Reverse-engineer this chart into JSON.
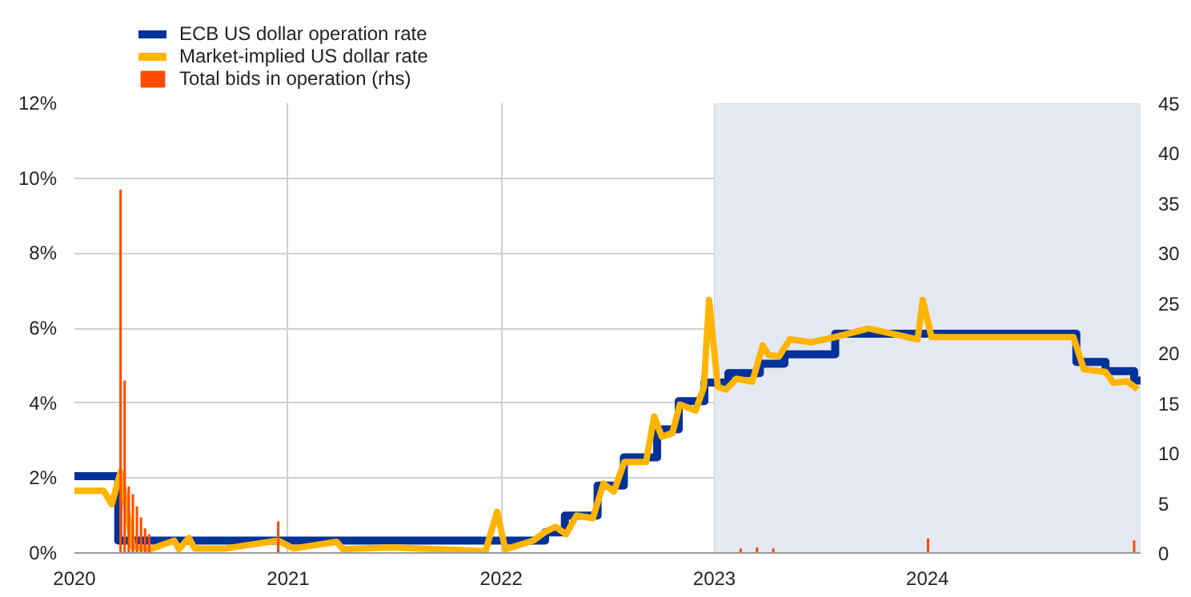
{
  "chart_data": {
    "type": "line",
    "xlim": [
      "2020-01-01",
      "2024-12-31"
    ],
    "xticks": [
      {
        "value": "2020-01-01",
        "label": "2020"
      },
      {
        "value": "2021-01-01",
        "label": "2021"
      },
      {
        "value": "2022-01-01",
        "label": "2022"
      },
      {
        "value": "2023-01-01",
        "label": "2023"
      },
      {
        "value": "2024-01-01",
        "label": "2024"
      }
    ],
    "ylim": [
      0,
      12
    ],
    "yticks": [
      {
        "value": 0,
        "label": "0%"
      },
      {
        "value": 2,
        "label": "2%"
      },
      {
        "value": 4,
        "label": "4%"
      },
      {
        "value": 6,
        "label": "6%"
      },
      {
        "value": 8,
        "label": "8%"
      },
      {
        "value": 10,
        "label": "10%"
      },
      {
        "value": 12,
        "label": "12%"
      }
    ],
    "y2lim": [
      0,
      45
    ],
    "y2ticks": [
      0,
      5,
      10,
      15,
      20,
      25,
      30,
      35,
      40,
      45
    ],
    "grid": true,
    "legend": "top left",
    "bands": [
      {
        "axis": "x",
        "from": "2023-01-01",
        "to": "2024-12-31",
        "color": "#e4e8f3"
      }
    ],
    "series": [
      {
        "name": "Total bids in operation (rhs)",
        "type": "bar",
        "axis": "y2",
        "color": "#ff4b00",
        "x": [
          "2020-03-20",
          "2020-03-27",
          "2020-04-03",
          "2020-04-10",
          "2020-04-17",
          "2020-04-24",
          "2020-05-01",
          "2020-05-08",
          "2020-12-15",
          "2023-02-15",
          "2023-03-15",
          "2023-04-12",
          "2024-01-02",
          "2024-12-20"
        ],
        "values": [
          36.3,
          17.2,
          6.6,
          5.8,
          4.6,
          3.5,
          2.4,
          1.8,
          3.1,
          0.4,
          0.5,
          0.4,
          1.4,
          1.2
        ]
      },
      {
        "name": "ECB US dollar operation rate",
        "type": "step",
        "color": "#003299",
        "x": [
          "2020-01-01",
          "2020-03-16",
          "2022-03-17",
          "2022-04-20",
          "2022-06-15",
          "2022-07-30",
          "2022-09-25",
          "2022-11-01",
          "2022-12-15",
          "2023-01-25",
          "2023-03-20",
          "2023-05-01",
          "2023-07-27",
          "2024-09-12",
          "2024-11-01",
          "2024-12-20",
          "2024-12-31"
        ],
        "values": [
          2.05,
          0.33,
          0.55,
          1.0,
          1.8,
          2.55,
          3.3,
          4.05,
          4.55,
          4.8,
          5.05,
          5.3,
          5.85,
          5.1,
          4.85,
          4.6,
          4.6
        ]
      },
      {
        "name": "Market-implied US dollar rate",
        "type": "line",
        "color": "#ffb400",
        "x": [
          "2020-01-01",
          "2020-02-20",
          "2020-03-05",
          "2020-03-20",
          "2020-04-10",
          "2020-05-10",
          "2020-06-20",
          "2020-06-28",
          "2020-07-15",
          "2020-07-25",
          "2020-09-15",
          "2020-12-15",
          "2021-01-10",
          "2021-03-25",
          "2021-04-05",
          "2021-06-25",
          "2021-09-15",
          "2021-12-05",
          "2021-12-25",
          "2022-01-08",
          "2022-02-25",
          "2022-03-16",
          "2022-04-04",
          "2022-04-22",
          "2022-05-10",
          "2022-06-07",
          "2022-06-25",
          "2022-07-13",
          "2022-07-31",
          "2022-09-06",
          "2022-09-20",
          "2022-10-03",
          "2022-10-21",
          "2022-11-03",
          "2022-11-30",
          "2022-12-14",
          "2022-12-23",
          "2023-01-07",
          "2023-01-21",
          "2023-02-08",
          "2023-03-07",
          "2023-03-25",
          "2023-04-04",
          "2023-04-22",
          "2023-05-10",
          "2023-06-16",
          "2023-07-27",
          "2023-09-22",
          "2023-12-15",
          "2023-12-24",
          "2024-01-08",
          "2024-09-07",
          "2024-09-25",
          "2024-11-01",
          "2024-11-14",
          "2024-12-08",
          "2024-12-26"
        ],
        "values": [
          1.66,
          1.66,
          1.3,
          2.16,
          0.17,
          0.1,
          0.33,
          0.1,
          0.4,
          0.12,
          0.12,
          0.33,
          0.12,
          0.3,
          0.1,
          0.15,
          0.1,
          0.05,
          1.1,
          0.1,
          0.33,
          0.55,
          0.7,
          0.5,
          1.0,
          0.93,
          1.85,
          1.64,
          2.43,
          2.43,
          3.64,
          3.1,
          3.2,
          3.96,
          3.8,
          4.43,
          6.75,
          4.43,
          4.36,
          4.65,
          4.57,
          5.54,
          5.28,
          5.25,
          5.7,
          5.62,
          5.76,
          5.99,
          5.7,
          6.75,
          5.76,
          5.76,
          4.9,
          4.83,
          4.54,
          4.58,
          4.37
        ]
      }
    ]
  }
}
